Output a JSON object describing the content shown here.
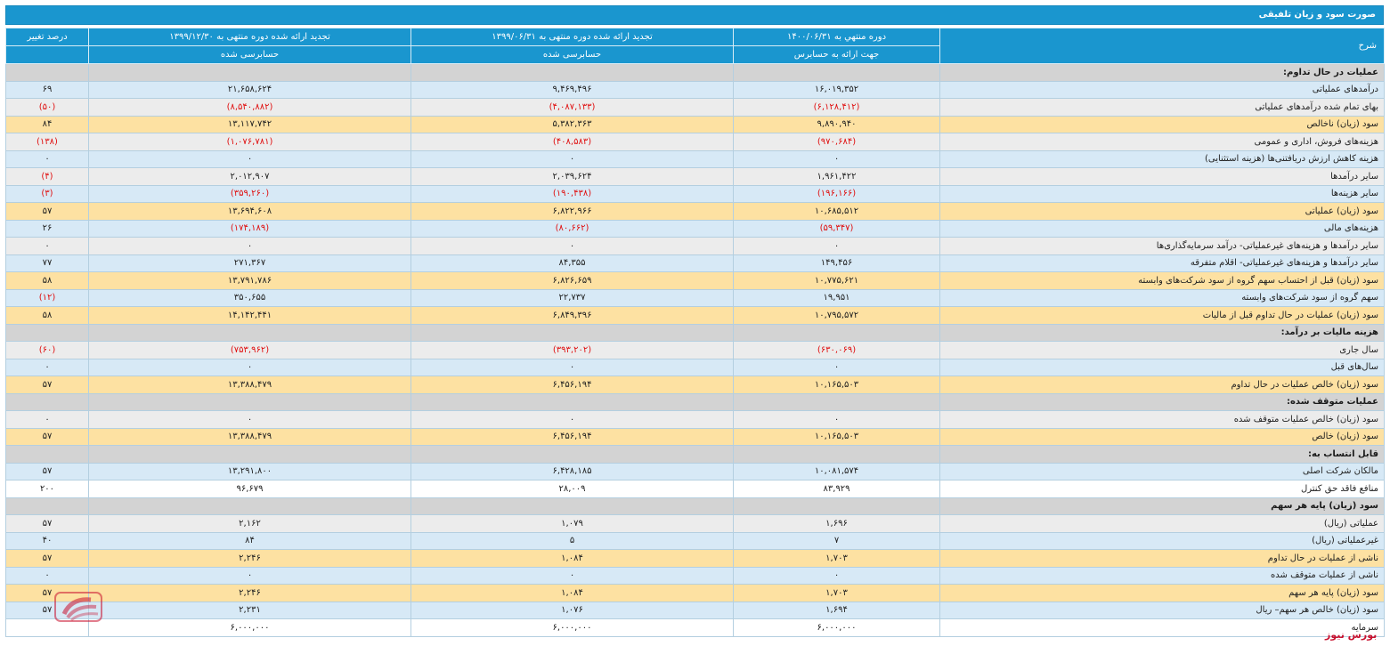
{
  "title": "صورت سود و زیان تلفیقی",
  "headers": {
    "desc": "شرح",
    "col1": "دوره منتهي به ۱۴۰۰/۰۶/۳۱",
    "col1_sub": "جهت ارائه به حسابرس",
    "col2": "تجدید ارائه شده دوره منتهی به ۱۳۹۹/۰۶/۳۱",
    "col2_sub": "حسابرسی شده",
    "col3": "تجدید ارائه شده دوره منتهی به ۱۳۹۹/۱۲/۳۰",
    "col3_sub": "حسابرسی شده",
    "change": "درصد تغییر"
  },
  "rows": [
    {
      "type": "section",
      "desc": "عملیات در حال تداوم:"
    },
    {
      "type": "blue",
      "desc": "درآمدهای عملیاتی",
      "c1": "۱۶,۰۱۹,۳۵۲",
      "c2": "۹,۴۶۹,۴۹۶",
      "c3": "۲۱,۶۵۸,۶۲۴",
      "chg": "۶۹"
    },
    {
      "type": "gray",
      "desc": "بهای تمام شده درآمدهای عملیاتی",
      "c1": "(۶,۱۲۸,۴۱۲)",
      "c2": "(۴,۰۸۷,۱۳۳)",
      "c3": "(۸,۵۴۰,۸۸۲)",
      "chg": "(۵۰)",
      "neg": [
        1,
        1,
        1,
        1
      ]
    },
    {
      "type": "yellow",
      "desc": "سود (زیان) ناخالص",
      "c1": "۹,۸۹۰,۹۴۰",
      "c2": "۵,۳۸۲,۳۶۳",
      "c3": "۱۳,۱۱۷,۷۴۲",
      "chg": "۸۴"
    },
    {
      "type": "gray",
      "desc": "هزینه‌های فروش، اداری و عمومی",
      "c1": "(۹۷۰,۶۸۴)",
      "c2": "(۴۰۸,۵۸۳)",
      "c3": "(۱,۰۷۶,۷۸۱)",
      "chg": "(۱۳۸)",
      "neg": [
        1,
        1,
        1,
        1
      ]
    },
    {
      "type": "blue",
      "desc": "هزینه کاهش ارزش دریافتنی‌ها (هزینه استثنایی)",
      "c1": "۰",
      "c2": "۰",
      "c3": "۰",
      "chg": "۰"
    },
    {
      "type": "gray",
      "desc": "سایر درآمدها",
      "c1": "۱,۹۶۱,۴۲۲",
      "c2": "۲,۰۳۹,۶۲۴",
      "c3": "۲,۰۱۲,۹۰۷",
      "chg": "(۴)",
      "neg": [
        0,
        0,
        0,
        1
      ]
    },
    {
      "type": "blue",
      "desc": "سایر هزینه‌ها",
      "c1": "(۱۹۶,۱۶۶)",
      "c2": "(۱۹۰,۴۳۸)",
      "c3": "(۳۵۹,۲۶۰)",
      "chg": "(۳)",
      "neg": [
        1,
        1,
        1,
        1
      ]
    },
    {
      "type": "yellow",
      "desc": "سود (زیان) عملیاتی",
      "c1": "۱۰,۶۸۵,۵۱۲",
      "c2": "۶,۸۲۲,۹۶۶",
      "c3": "۱۳,۶۹۴,۶۰۸",
      "chg": "۵۷"
    },
    {
      "type": "blue",
      "desc": "هزینه‌های مالی",
      "c1": "(۵۹,۳۴۷)",
      "c2": "(۸۰,۶۶۲)",
      "c3": "(۱۷۴,۱۸۹)",
      "chg": "۲۶",
      "neg": [
        1,
        1,
        1,
        0
      ]
    },
    {
      "type": "gray",
      "desc": "سایر درآمدها و هزینه‌های غیرعملیاتی- درآمد سرمایه‌گذاری‌ها",
      "c1": "۰",
      "c2": "۰",
      "c3": "۰",
      "chg": "۰"
    },
    {
      "type": "blue",
      "desc": "سایر درآمدها و هزینه‌های غیرعملیاتی- اقلام متفرقه",
      "c1": "۱۴۹,۴۵۶",
      "c2": "۸۴,۳۵۵",
      "c3": "۲۷۱,۳۶۷",
      "chg": "۷۷"
    },
    {
      "type": "yellow",
      "desc": "سود (زیان) قبل از احتساب سهم گروه از سود شرکت‌های وابسته",
      "c1": "۱۰,۷۷۵,۶۲۱",
      "c2": "۶,۸۲۶,۶۵۹",
      "c3": "۱۳,۷۹۱,۷۸۶",
      "chg": "۵۸"
    },
    {
      "type": "blue",
      "desc": "سهم گروه از سود شرکت‌های وابسته",
      "c1": "۱۹,۹۵۱",
      "c2": "۲۲,۷۳۷",
      "c3": "۳۵۰,۶۵۵",
      "chg": "(۱۲)",
      "neg": [
        0,
        0,
        0,
        1
      ]
    },
    {
      "type": "yellow",
      "desc": "سود (زیان) عملیات در حال تداوم قبل از مالیات",
      "c1": "۱۰,۷۹۵,۵۷۲",
      "c2": "۶,۸۴۹,۳۹۶",
      "c3": "۱۴,۱۴۲,۴۴۱",
      "chg": "۵۸"
    },
    {
      "type": "section",
      "desc": "هزینه مالیات بر درآمد:"
    },
    {
      "type": "gray",
      "desc": "سال جاری",
      "c1": "(۶۳۰,۰۶۹)",
      "c2": "(۳۹۳,۲۰۲)",
      "c3": "(۷۵۳,۹۶۲)",
      "chg": "(۶۰)",
      "neg": [
        1,
        1,
        1,
        1
      ]
    },
    {
      "type": "blue",
      "desc": "سال‌های قبل",
      "c1": "۰",
      "c2": "۰",
      "c3": "۰",
      "chg": "۰"
    },
    {
      "type": "yellow",
      "desc": "سود (زیان) خالص عملیات در حال تداوم",
      "c1": "۱۰,۱۶۵,۵۰۳",
      "c2": "۶,۴۵۶,۱۹۴",
      "c3": "۱۳,۳۸۸,۴۷۹",
      "chg": "۵۷"
    },
    {
      "type": "section",
      "desc": "عملیات متوقف شده:"
    },
    {
      "type": "gray",
      "desc": "سود (زیان) خالص عملیات متوقف شده",
      "c1": "۰",
      "c2": "۰",
      "c3": "۰",
      "chg": "۰"
    },
    {
      "type": "yellow",
      "desc": "سود (زیان) خالص",
      "c1": "۱۰,۱۶۵,۵۰۳",
      "c2": "۶,۴۵۶,۱۹۴",
      "c3": "۱۳,۳۸۸,۴۷۹",
      "chg": "۵۷"
    },
    {
      "type": "section",
      "desc": "قابل انتساب به:"
    },
    {
      "type": "blue",
      "desc": "مالکان شرکت اصلی",
      "c1": "۱۰,۰۸۱,۵۷۴",
      "c2": "۶,۴۲۸,۱۸۵",
      "c3": "۱۳,۲۹۱,۸۰۰",
      "chg": "۵۷"
    },
    {
      "type": "white",
      "desc": "منافع فاقد حق کنترل",
      "c1": "۸۳,۹۲۹",
      "c2": "۲۸,۰۰۹",
      "c3": "۹۶,۶۷۹",
      "chg": "۲۰۰"
    },
    {
      "type": "section",
      "desc": "سود (زیان) پایه هر سهم"
    },
    {
      "type": "gray",
      "desc": "عملیاتی (ریال)",
      "c1": "۱,۶۹۶",
      "c2": "۱,۰۷۹",
      "c3": "۲,۱۶۲",
      "chg": "۵۷"
    },
    {
      "type": "blue",
      "desc": "غیرعملیاتی (ریال)",
      "c1": "۷",
      "c2": "۵",
      "c3": "۸۴",
      "chg": "۴۰"
    },
    {
      "type": "yellow",
      "desc": "ناشی از عملیات در حال تداوم",
      "c1": "۱,۷۰۳",
      "c2": "۱,۰۸۴",
      "c3": "۲,۲۴۶",
      "chg": "۵۷"
    },
    {
      "type": "blue",
      "desc": "ناشی از عملیات متوقف شده",
      "c1": "۰",
      "c2": "۰",
      "c3": "۰",
      "chg": "۰"
    },
    {
      "type": "yellow",
      "desc": "سود (زیان) پایه هر سهم",
      "c1": "۱,۷۰۳",
      "c2": "۱,۰۸۴",
      "c3": "۲,۲۴۶",
      "chg": "۵۷"
    },
    {
      "type": "blue",
      "desc": "سود (زیان) خالص هر سهم– ریال",
      "c1": "۱,۶۹۴",
      "c2": "۱,۰۷۶",
      "c3": "۲,۲۳۱",
      "chg": "۵۷"
    },
    {
      "type": "white",
      "desc": "سرمایه",
      "c1": "۶,۰۰۰,۰۰۰",
      "c2": "۶,۰۰۰,۰۰۰",
      "c3": "۶,۰۰۰,۰۰۰",
      "chg": ""
    }
  ],
  "watermark": "بورس نیوز",
  "logo": {
    "icon": "bourse-news-logo-icon",
    "color": "#c8102e",
    "text": "بورس نیوز"
  }
}
